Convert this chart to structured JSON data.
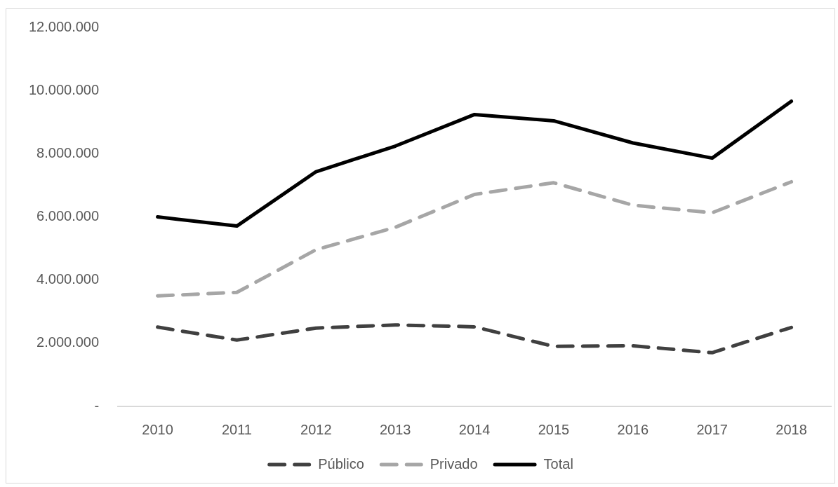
{
  "chart_data": {
    "type": "line",
    "categories": [
      "2010",
      "2011",
      "2012",
      "2013",
      "2014",
      "2015",
      "2016",
      "2017",
      "2018"
    ],
    "series": [
      {
        "name": "Público",
        "color": "#404040",
        "line_style": "dashed",
        "values": [
          2510000,
          2100000,
          2480000,
          2580000,
          2520000,
          1900000,
          1920000,
          1700000,
          2500000
        ]
      },
      {
        "name": "Privado",
        "color": "#a6a6a6",
        "line_style": "dashed",
        "values": [
          3500000,
          3610000,
          4960000,
          5670000,
          6710000,
          7080000,
          6370000,
          6130000,
          7110000
        ]
      },
      {
        "name": "Total",
        "color": "#000000",
        "line_style": "solid",
        "values": [
          6000000,
          5710000,
          7430000,
          8240000,
          9240000,
          9040000,
          8340000,
          7860000,
          9660000
        ]
      }
    ],
    "ylim": [
      0,
      12000000
    ],
    "yticks": [
      {
        "value": 0,
        "label": "-"
      },
      {
        "value": 2000000,
        "label": "2.000.000"
      },
      {
        "value": 4000000,
        "label": "4.000.000"
      },
      {
        "value": 6000000,
        "label": "6.000.000"
      },
      {
        "value": 8000000,
        "label": "8.000.000"
      },
      {
        "value": 10000000,
        "label": "10.000.000"
      },
      {
        "value": 12000000,
        "label": "12.000.000"
      }
    ],
    "grid": false,
    "legend": "bottom",
    "marker": "none"
  }
}
